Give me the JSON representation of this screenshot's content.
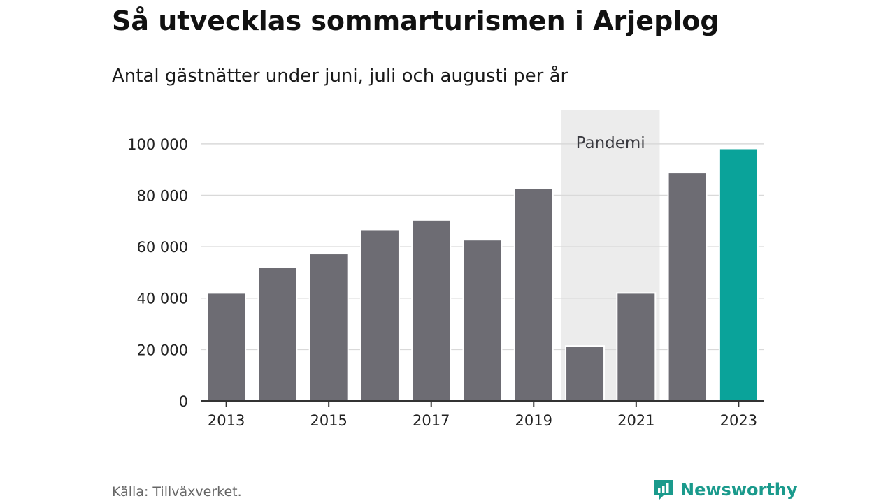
{
  "title": "Så utvecklas sommarturismen i Arjeplog",
  "subtitle": "Antal gästnätter under juni, juli och augusti per år",
  "source": "Källa: Tillväxverket.",
  "brand": {
    "name": "Newsworthy",
    "logo_icon": "newsworthy-chart-bubble-icon"
  },
  "colors": {
    "bar": "#6d6c73",
    "highlight": "#0aa39a",
    "shade": "#ececec",
    "grid": "#d9d9d9",
    "axis": "#333333",
    "brand": "#1a9a8c"
  },
  "chart_data": {
    "type": "bar",
    "categories": [
      "2013",
      "2014",
      "2015",
      "2016",
      "2017",
      "2018",
      "2019",
      "2020",
      "2021",
      "2022",
      "2023"
    ],
    "values": [
      42000,
      52000,
      57300,
      66700,
      70400,
      62700,
      82600,
      21400,
      42000,
      88800,
      98200
    ],
    "highlight_category": "2023",
    "x_tick_labels": [
      "2013",
      "2015",
      "2017",
      "2019",
      "2021",
      "2023"
    ],
    "y_ticks": [
      0,
      20000,
      40000,
      60000,
      80000,
      100000
    ],
    "y_tick_labels": [
      "0",
      "20 000",
      "40 000",
      "60 000",
      "80 000",
      "100 000"
    ],
    "ylim": [
      0,
      113000
    ],
    "grid": true,
    "annotation": {
      "label": "Pandemi",
      "from": "2020",
      "to": "2021"
    }
  }
}
